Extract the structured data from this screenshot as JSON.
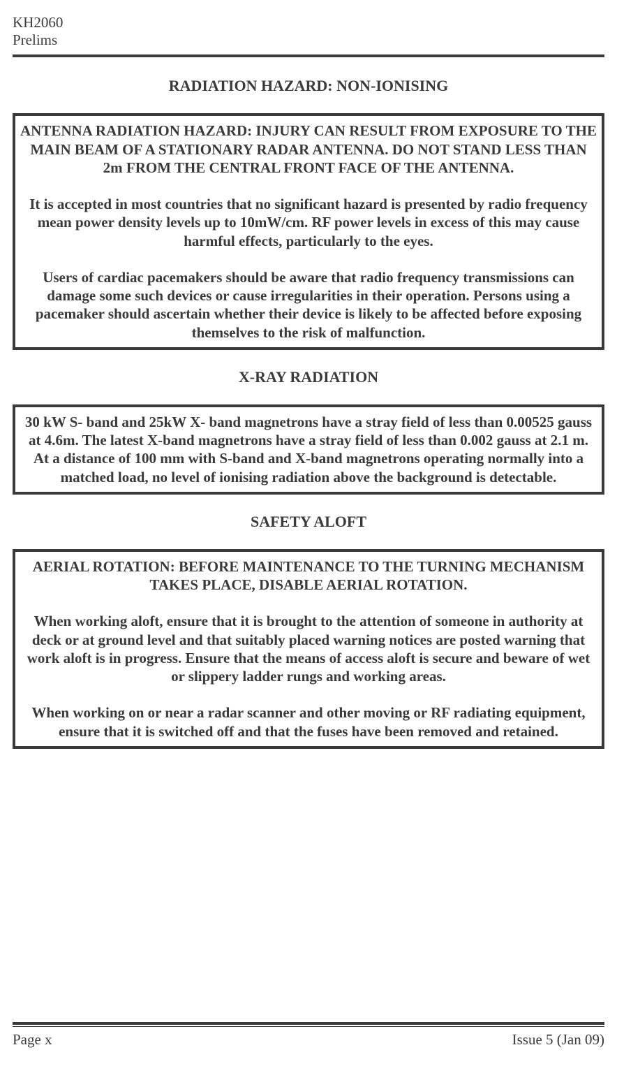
{
  "header": {
    "line1": "KH2060",
    "line2": "Prelims"
  },
  "sections": {
    "radiation": {
      "heading": "RADIATION HAZARD: NON-IONISING",
      "box": {
        "para1": "ANTENNA RADIATION HAZARD: INJURY CAN RESULT FROM EXPOSURE TO THE MAIN BEAM OF A STATIONARY RADAR ANTENNA. DO NOT STAND LESS THAN 2m FROM THE CENTRAL FRONT FACE OF THE ANTENNA.",
        "para2": "It is accepted in most countries that no significant hazard is presented by radio frequency mean power density levels up to 10mW/cm. RF power levels in excess of this may cause harmful effects, particularly to the eyes.",
        "para3": "Users of cardiac  pacemakers  should be aware that radio frequency transmissions can damage some such devices or cause irregularities in their operation.  Persons using a pacemaker should ascertain whether their device is likely to be affected before exposing themselves to the risk of malfunction."
      }
    },
    "xray": {
      "heading": "X-RAY RADIATION",
      "box": {
        "para1": "30 kW S- band and 25kW X- band magnetrons have a stray field of less than 0.00525 gauss at 4.6m. The latest X-band magnetrons have a stray field of less than 0.002 gauss at 2.1 m.",
        "para2": "At a distance of 100 mm with S-band and X-band magnetrons operating normally into a matched load, no level of ionising radiation above the background is detectable."
      }
    },
    "safety": {
      "heading": "SAFETY ALOFT",
      "box": {
        "para1": "AERIAL ROTATION: BEFORE MAINTENANCE TO THE TURNING MECHANISM TAKES PLACE, DISABLE AERIAL ROTATION.",
        "para2": "When working aloft, ensure that it is brought to the attention of someone in authority at deck or at ground level and that suitably placed warning notices are posted warning that work aloft is in progress.  Ensure that the means of access aloft is secure and beware of wet or slippery ladder rungs and working areas.",
        "para3": "When working on or near a radar scanner and other moving or RF radiating equipment, ensure that it is switched off and that the fuses have been removed and retained."
      }
    }
  },
  "footer": {
    "left": "Page x",
    "right": "Issue 5 (Jan 09)"
  },
  "colors": {
    "text": "#3a3a3a",
    "background": "#ffffff",
    "rule": "#3a3a3a"
  },
  "typography": {
    "body_font": "Times New Roman",
    "body_size_pt": 16,
    "heading_size_pt": 16,
    "heading_weight": "bold"
  }
}
